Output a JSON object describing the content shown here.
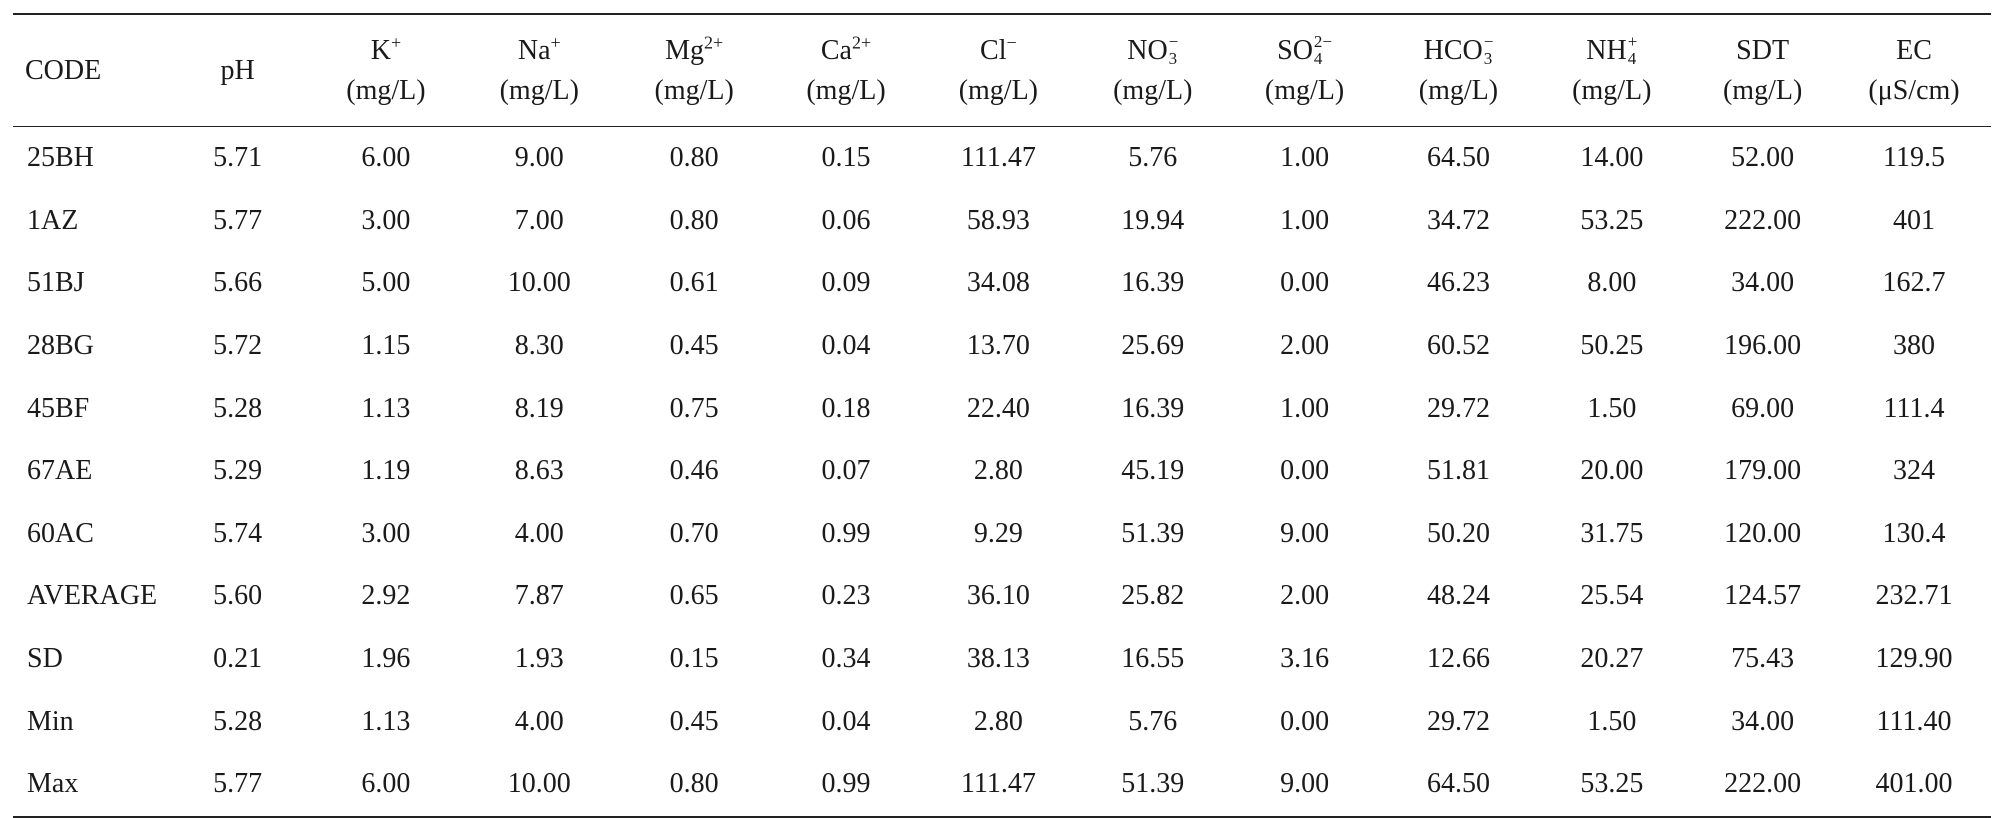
{
  "table": {
    "columns": [
      {
        "base": "CODE",
        "sup": "",
        "sub": "",
        "unit": ""
      },
      {
        "base": "pH",
        "sup": "",
        "sub": "",
        "unit": ""
      },
      {
        "base": "K",
        "sup": "+",
        "sub": "",
        "unit": "(mg/L)"
      },
      {
        "base": "Na",
        "sup": "+",
        "sub": "",
        "unit": "(mg/L)"
      },
      {
        "base": "Mg",
        "sup": "2+",
        "sub": "",
        "unit": "(mg/L)"
      },
      {
        "base": "Ca",
        "sup": "2+",
        "sub": "",
        "unit": "(mg/L)"
      },
      {
        "base": "Cl",
        "sup": "−",
        "sub": "",
        "unit": "(mg/L)"
      },
      {
        "base": "NO",
        "sup": "−",
        "sub": "3",
        "unit": "(mg/L)"
      },
      {
        "base": "SO",
        "sup": "2−",
        "sub": "4",
        "unit": "(mg/L)"
      },
      {
        "base": "HCO",
        "sup": "−",
        "sub": "3",
        "unit": "(mg/L)"
      },
      {
        "base": "NH",
        "sup": "+",
        "sub": "4",
        "unit": "(mg/L)"
      },
      {
        "base": "SDT",
        "sup": "",
        "sub": "",
        "unit": "(mg/L)"
      },
      {
        "base": "EC",
        "sup": "",
        "sub": "",
        "unit": "(μS/cm)"
      }
    ],
    "rows": [
      [
        "25BH",
        "5.71",
        "6.00",
        "9.00",
        "0.80",
        "0.15",
        "111.47",
        "5.76",
        "1.00",
        "64.50",
        "14.00",
        "52.00",
        "119.5"
      ],
      [
        "1AZ",
        "5.77",
        "3.00",
        "7.00",
        "0.80",
        "0.06",
        "58.93",
        "19.94",
        "1.00",
        "34.72",
        "53.25",
        "222.00",
        "401"
      ],
      [
        "51BJ",
        "5.66",
        "5.00",
        "10.00",
        "0.61",
        "0.09",
        "34.08",
        "16.39",
        "0.00",
        "46.23",
        "8.00",
        "34.00",
        "162.7"
      ],
      [
        "28BG",
        "5.72",
        "1.15",
        "8.30",
        "0.45",
        "0.04",
        "13.70",
        "25.69",
        "2.00",
        "60.52",
        "50.25",
        "196.00",
        "380"
      ],
      [
        "45BF",
        "5.28",
        "1.13",
        "8.19",
        "0.75",
        "0.18",
        "22.40",
        "16.39",
        "1.00",
        "29.72",
        "1.50",
        "69.00",
        "111.4"
      ],
      [
        "67AE",
        "5.29",
        "1.19",
        "8.63",
        "0.46",
        "0.07",
        "2.80",
        "45.19",
        "0.00",
        "51.81",
        "20.00",
        "179.00",
        "324"
      ],
      [
        "60AC",
        "5.74",
        "3.00",
        "4.00",
        "0.70",
        "0.99",
        "9.29",
        "51.39",
        "9.00",
        "50.20",
        "31.75",
        "120.00",
        "130.4"
      ],
      [
        "AVERAGE",
        "5.60",
        "2.92",
        "7.87",
        "0.65",
        "0.23",
        "36.10",
        "25.82",
        "2.00",
        "48.24",
        "25.54",
        "124.57",
        "232.71"
      ],
      [
        "SD",
        "0.21",
        "1.96",
        "1.93",
        "0.15",
        "0.34",
        "38.13",
        "16.55",
        "3.16",
        "12.66",
        "20.27",
        "75.43",
        "129.90"
      ],
      [
        "Min",
        "5.28",
        "1.13",
        "4.00",
        "0.45",
        "0.04",
        "2.80",
        "5.76",
        "0.00",
        "29.72",
        "1.50",
        "34.00",
        "111.40"
      ],
      [
        "Max",
        "5.77",
        "6.00",
        "10.00",
        "0.80",
        "0.99",
        "111.47",
        "51.39",
        "9.00",
        "64.50",
        "53.25",
        "222.00",
        "401.00"
      ]
    ]
  }
}
